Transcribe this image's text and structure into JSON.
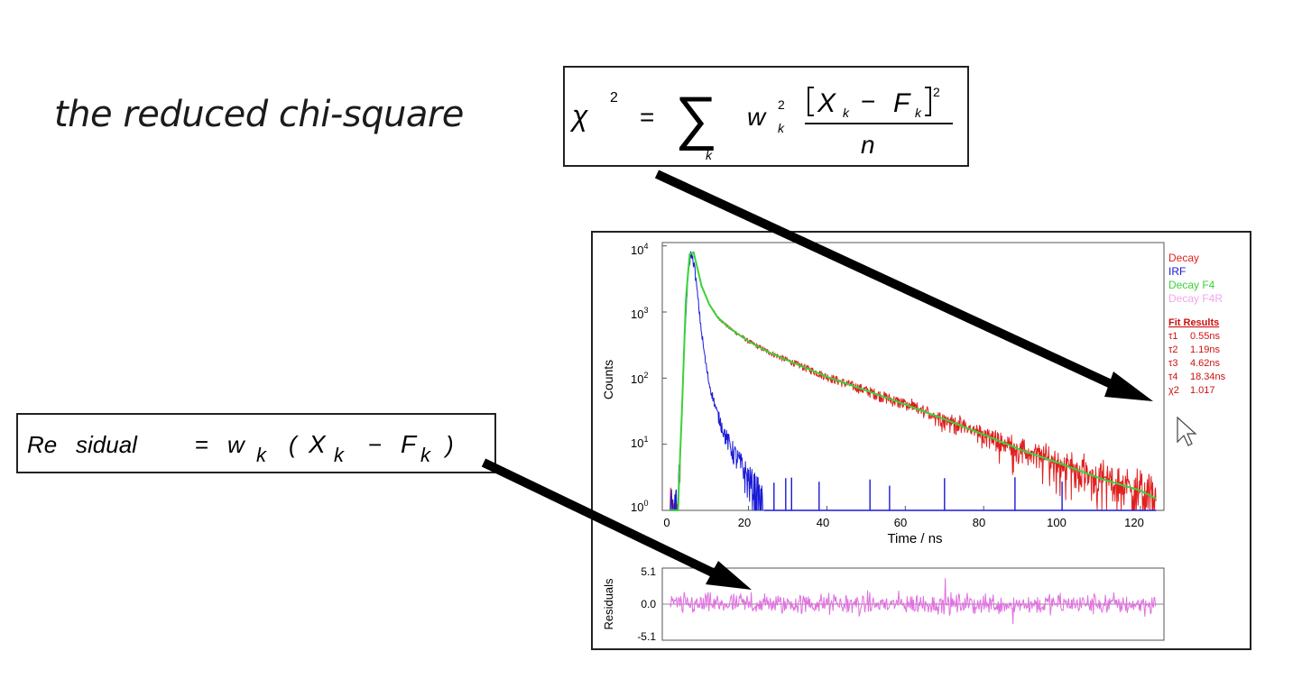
{
  "heading": "the reduced chi-square",
  "chi_formula": {
    "chi": "χ",
    "power2": "2",
    "equals": "=",
    "sum": "∑",
    "sum_index": "k",
    "w": "w",
    "w_sub": "k",
    "w_sup": "2",
    "numerator_X": "X",
    "numerator_X_sub": "k",
    "minus": "−",
    "numerator_F": "F",
    "numerator_F_sub": "k",
    "numerator_sup": "2",
    "denominator": "n"
  },
  "residual_formula": {
    "lhs_part1": "Re",
    "lhs_part2": "sidual",
    "equals": "=",
    "w": "w",
    "w_sub": "k",
    "open_paren": "(",
    "X": "X",
    "X_sub": "k",
    "minus": "−",
    "F": "F",
    "F_sub": "k",
    "close_paren": ")"
  },
  "chart_data": [
    {
      "type": "line",
      "xlabel": "Time / ns",
      "ylabel": "Counts",
      "xlim": [
        -2,
        126
      ],
      "ylim_log10": [
        0,
        4.05
      ],
      "log_y": true,
      "x_ticks": [
        "0",
        "20",
        "40",
        "60",
        "80",
        "100",
        "120"
      ],
      "y_ticks": [
        {
          "base": "10",
          "exp": "0"
        },
        {
          "base": "10",
          "exp": "1"
        },
        {
          "base": "10",
          "exp": "2"
        },
        {
          "base": "10",
          "exp": "3"
        },
        {
          "base": "10",
          "exp": "4"
        }
      ],
      "legend_position": "right",
      "series": [
        {
          "name": "Decay",
          "color": "#e02020",
          "x": [
            0,
            2,
            3,
            4,
            5,
            6,
            7,
            8,
            10,
            12,
            15,
            20,
            25,
            30,
            40,
            50,
            60,
            70,
            80,
            90,
            100,
            110,
            120,
            124
          ],
          "y": [
            1,
            1,
            30,
            1500,
            7500,
            8000,
            4500,
            2500,
            1300,
            850,
            580,
            360,
            250,
            185,
            105,
            65,
            40,
            24,
            14,
            8,
            5,
            3,
            2,
            1.5
          ]
        },
        {
          "name": "IRF",
          "color": "#1a1ad6",
          "x": [
            0,
            1.5,
            2.5,
            3.5,
            4.5,
            5.3,
            6.2,
            7,
            8,
            9,
            10,
            12,
            14,
            16,
            18,
            20,
            22,
            24
          ],
          "y": [
            1,
            1,
            5,
            200,
            3500,
            8000,
            5000,
            1800,
            500,
            180,
            80,
            30,
            14,
            8,
            5,
            3,
            2,
            1
          ]
        },
        {
          "name": "Decay F4",
          "color": "#3ad23a",
          "x": [
            0,
            2,
            3,
            4,
            5,
            6,
            7,
            8,
            10,
            12,
            15,
            20,
            25,
            30,
            40,
            50,
            60,
            70,
            80,
            90,
            100,
            110,
            120,
            124
          ],
          "y": [
            1,
            1,
            30,
            1500,
            7500,
            8000,
            4500,
            2500,
            1300,
            850,
            580,
            360,
            250,
            185,
            105,
            65,
            40,
            24,
            14,
            8,
            5,
            3,
            2,
            1.5
          ]
        },
        {
          "name": "Decay F4R",
          "color": "#f2a6ea",
          "x": [],
          "y": []
        }
      ],
      "fit_results": {
        "title": "Fit Results",
        "rows": [
          {
            "label": "τ1",
            "value": "0.55ns"
          },
          {
            "label": "τ2",
            "value": "1.19ns"
          },
          {
            "label": "τ3",
            "value": "4.62ns"
          },
          {
            "label": "τ4",
            "value": "18.34ns"
          },
          {
            "label": "χ2",
            "value": "1.017"
          }
        ]
      }
    },
    {
      "type": "line",
      "ylabel": "Residuals",
      "xlim": [
        -2,
        126
      ],
      "ylim": [
        -5.1,
        5.1
      ],
      "y_ticks": [
        "5.1",
        "0.0",
        "-5.1"
      ],
      "series": [
        {
          "name": "Decay F4R",
          "color": "#e070e0",
          "x_range": [
            0,
            124
          ],
          "amplitude": 1.5
        }
      ]
    }
  ]
}
